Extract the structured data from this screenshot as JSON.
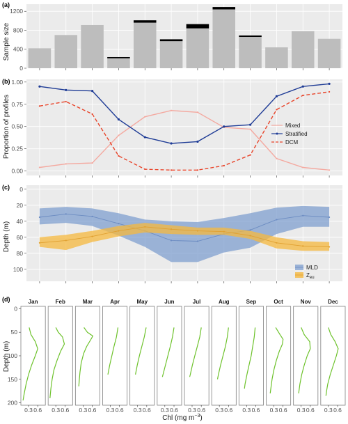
{
  "colors": {
    "panel_bg": "#ebebeb",
    "grid": "#ffffff",
    "bar": "#bdbdbd",
    "bar_top": "#000000",
    "mixed": "#f4a9a0",
    "stratified": "#1f3c96",
    "dcm": "#e8442a",
    "mld": "#7f9fcf",
    "zeu": "#f5b83d",
    "chl": "#6dc22b"
  },
  "chart_data": [
    {
      "id": "a",
      "type": "bar",
      "panel_label": "(a)",
      "ylabel": "Sample size",
      "ylim": [
        0,
        1350
      ],
      "yticks": [
        0,
        400,
        800,
        1200
      ],
      "yticklabels": [
        "0",
        "400",
        "800",
        "1200"
      ],
      "grid": true,
      "values": [
        420,
        700,
        910,
        210,
        960,
        570,
        840,
        1240,
        660,
        440,
        780,
        620
      ],
      "top_marks": [
        0,
        0,
        0,
        25,
        50,
        40,
        90,
        50,
        30,
        0,
        0,
        0
      ]
    },
    {
      "id": "b",
      "type": "line",
      "panel_label": "(b)",
      "ylabel": "Proportion of profiles",
      "ylim": [
        -0.05,
        1.03
      ],
      "yticks": [
        0.0,
        0.25,
        0.5,
        0.75,
        1.0
      ],
      "yticklabels": [
        "0.00",
        "0.25",
        "0.50",
        "0.75",
        "1.00"
      ],
      "grid": true,
      "legend_position": "right",
      "series": [
        {
          "name": "Mixed",
          "style": "solid-pink",
          "values": [
            0.04,
            0.08,
            0.09,
            0.4,
            0.61,
            0.68,
            0.66,
            0.49,
            0.47,
            0.14,
            0.04,
            0.01
          ]
        },
        {
          "name": "Stratified",
          "style": "solid-points",
          "values": [
            0.95,
            0.91,
            0.9,
            0.58,
            0.38,
            0.31,
            0.33,
            0.5,
            0.52,
            0.84,
            0.95,
            0.98
          ]
        },
        {
          "name": "DCM",
          "style": "dashed",
          "values": [
            0.73,
            0.78,
            0.64,
            0.17,
            0.02,
            0.01,
            0.01,
            0.06,
            0.18,
            0.69,
            0.85,
            0.89
          ]
        }
      ]
    },
    {
      "id": "c",
      "type": "area",
      "panel_label": "(c)",
      "ylabel": "Depth (m)",
      "ylim": [
        115,
        -5
      ],
      "yticks": [
        0,
        20,
        40,
        60,
        80,
        100
      ],
      "yticklabels": [
        "0",
        "20",
        "40",
        "60",
        "80",
        "100"
      ],
      "grid": true,
      "legend_position": "bottom-right",
      "series": [
        {
          "name": "MLD",
          "name_main": "MLD",
          "name_sub": "",
          "mean": [
            35,
            31,
            34,
            43,
            52,
            64,
            65,
            56,
            51,
            38,
            33,
            35
          ],
          "lower": [
            24,
            22,
            24,
            30,
            38,
            40,
            41,
            36,
            30,
            23,
            21,
            22
          ],
          "upper": [
            44,
            42,
            46,
            58,
            72,
            91,
            91,
            79,
            73,
            56,
            47,
            47
          ]
        },
        {
          "name": "Zeu",
          "name_main": "Z",
          "name_sub": "eu",
          "mean": [
            67,
            64,
            59,
            52,
            47,
            50,
            52,
            53,
            58,
            67,
            71,
            72
          ],
          "lower": [
            60,
            57,
            52,
            46,
            42,
            45,
            48,
            48,
            52,
            60,
            65,
            66
          ],
          "upper": [
            72,
            76,
            66,
            59,
            54,
            56,
            57,
            57,
            62,
            74,
            77,
            77
          ]
        }
      ]
    },
    {
      "id": "d",
      "type": "line",
      "panel_label": "(d)",
      "xlabel_main": "Chl (mg m",
      "xlabel_sup": "−3",
      "xlabel_tail": ")",
      "ylabel": "Depth (m)",
      "ylim": [
        205,
        -5
      ],
      "yticks": [
        0,
        50,
        100,
        150,
        200
      ],
      "yticklabels": [
        "0",
        "50",
        "100",
        "150",
        "200"
      ],
      "xlim": [
        0.05,
        0.85
      ],
      "xticks": [
        0.3,
        0.6
      ],
      "xticklabels": [
        "0.3",
        "0.6"
      ],
      "grid": false,
      "series": [
        {
          "name": "Jan",
          "depth": [
            40,
            55,
            70,
            85,
            100,
            120,
            140,
            160,
            180,
            195
          ],
          "chl": [
            0.32,
            0.38,
            0.52,
            0.6,
            0.52,
            0.4,
            0.3,
            0.22,
            0.16,
            0.12
          ]
        },
        {
          "name": "Feb",
          "depth": [
            40,
            50,
            60,
            75,
            90,
            110,
            130,
            150,
            170,
            190
          ],
          "chl": [
            0.3,
            0.38,
            0.52,
            0.58,
            0.46,
            0.34,
            0.24,
            0.18,
            0.14,
            0.11
          ]
        },
        {
          "name": "Mar",
          "depth": [
            40,
            50,
            58,
            66,
            80,
            95,
            115,
            135,
            150,
            165
          ],
          "chl": [
            0.33,
            0.44,
            0.62,
            0.55,
            0.42,
            0.32,
            0.24,
            0.2,
            0.18,
            0.16
          ]
        },
        {
          "name": "Apr",
          "depth": [
            40,
            60,
            80,
            100,
            120,
            140
          ],
          "chl": [
            0.55,
            0.5,
            0.42,
            0.35,
            0.28,
            0.22
          ]
        },
        {
          "name": "May",
          "depth": [
            40,
            60,
            80,
            100,
            120,
            140
          ],
          "chl": [
            0.58,
            0.52,
            0.44,
            0.36,
            0.29,
            0.23
          ]
        },
        {
          "name": "Jun",
          "depth": [
            40,
            60,
            80,
            100,
            120,
            140,
            145
          ],
          "chl": [
            0.6,
            0.55,
            0.48,
            0.4,
            0.32,
            0.24,
            0.22
          ]
        },
        {
          "name": "Jul",
          "depth": [
            40,
            60,
            80,
            100,
            120,
            140,
            145
          ],
          "chl": [
            0.6,
            0.55,
            0.47,
            0.39,
            0.31,
            0.24,
            0.22
          ]
        },
        {
          "name": "Aug",
          "depth": [
            40,
            60,
            80,
            100,
            120,
            140,
            150
          ],
          "chl": [
            0.6,
            0.56,
            0.5,
            0.42,
            0.34,
            0.27,
            0.24
          ]
        },
        {
          "name": "Sep",
          "depth": [
            40,
            60,
            80,
            100,
            120,
            140,
            160,
            170
          ],
          "chl": [
            0.58,
            0.55,
            0.5,
            0.45,
            0.38,
            0.31,
            0.25,
            0.23
          ]
        },
        {
          "name": "Oct",
          "depth": [
            40,
            55,
            65,
            75,
            90,
            110,
            130,
            150,
            170,
            180
          ],
          "chl": [
            0.36,
            0.5,
            0.6,
            0.58,
            0.48,
            0.38,
            0.3,
            0.24,
            0.2,
            0.18
          ]
        },
        {
          "name": "Nov",
          "depth": [
            40,
            55,
            70,
            85,
            100,
            120,
            140,
            160,
            180
          ],
          "chl": [
            0.3,
            0.4,
            0.58,
            0.6,
            0.5,
            0.4,
            0.32,
            0.26,
            0.22
          ]
        },
        {
          "name": "Dec",
          "depth": [
            40,
            55,
            70,
            85,
            100,
            120,
            140,
            160,
            175,
            185
          ],
          "chl": [
            0.3,
            0.38,
            0.52,
            0.62,
            0.56,
            0.46,
            0.36,
            0.28,
            0.24,
            0.22
          ]
        }
      ]
    }
  ]
}
